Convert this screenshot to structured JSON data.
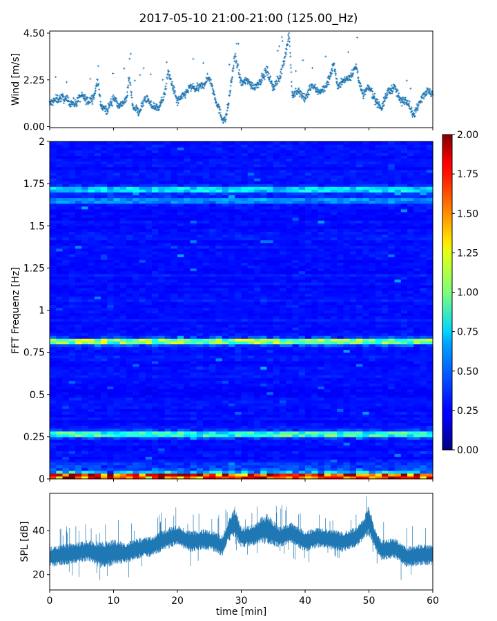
{
  "title": "2017-05-10 21:00-21:00 (125.00_Hz)",
  "chart_data": [
    {
      "type": "scatter",
      "panel": "wind",
      "ylabel": "Wind [m/s]",
      "xlim": [
        0,
        60
      ],
      "ylim": [
        -0.05,
        4.6
      ],
      "yticks": [
        0.0,
        2.25,
        4.5
      ],
      "ytick_labels": [
        "0.00",
        "2.25",
        "4.50"
      ],
      "series": [
        {
          "color": "#1f77b4",
          "marker": "+",
          "x": [
            0,
            1,
            2,
            3,
            4,
            5,
            6,
            7,
            7.5,
            8,
            9,
            10,
            11,
            12,
            12.5,
            13,
            14,
            15,
            16,
            17,
            18,
            18.5,
            19,
            20,
            21,
            22,
            23,
            24,
            25,
            26,
            27,
            27.5,
            28,
            29,
            30,
            31,
            32,
            33,
            34,
            35,
            36,
            37,
            37.5,
            38,
            39,
            40,
            41,
            42,
            43,
            44,
            44.5,
            45,
            46,
            47,
            48,
            49,
            50,
            51,
            52,
            53,
            54,
            55,
            56,
            57,
            58,
            59,
            60
          ],
          "y": [
            1.1,
            1.3,
            1.4,
            1.2,
            1.1,
            1.5,
            1.2,
            1.5,
            2.3,
            1.0,
            0.8,
            1.4,
            1.0,
            1.3,
            2.4,
            1.0,
            0.7,
            1.4,
            1.0,
            0.9,
            1.5,
            2.6,
            2.2,
            1.2,
            1.5,
            1.9,
            1.8,
            2.0,
            2.4,
            1.3,
            0.4,
            0.3,
            1.1,
            3.4,
            2.1,
            2.2,
            1.9,
            2.2,
            2.7,
            1.9,
            2.3,
            3.6,
            4.5,
            1.5,
            1.7,
            1.3,
            2.0,
            1.7,
            1.8,
            2.5,
            3.1,
            2.0,
            2.2,
            2.4,
            2.9,
            1.5,
            1.9,
            1.3,
            0.9,
            1.7,
            1.9,
            1.2,
            1.3,
            0.5,
            1.3,
            1.7,
            1.6
          ]
        }
      ]
    },
    {
      "type": "heatmap",
      "panel": "spectrogram",
      "ylabel": "FFT Frequenz [Hz]",
      "xlim": [
        0,
        60
      ],
      "ylim": [
        0,
        2
      ],
      "yticks": [
        0,
        0.25,
        0.5,
        0.75,
        1,
        1.25,
        1.5,
        1.75,
        2
      ],
      "ytick_labels": [
        "0",
        "0.25",
        "0.5",
        "0.75",
        "1",
        "1.25",
        "1.5",
        "1.75",
        "2"
      ],
      "colormap": "jet",
      "colorbar": {
        "range": [
          0.0,
          2.0
        ],
        "ticks": [
          "0.00",
          "0.25",
          "0.50",
          "0.75",
          "1.00",
          "1.25",
          "1.50",
          "1.75",
          "2.00"
        ]
      },
      "features": [
        {
          "frequency": 0.82,
          "level": 1.1
        },
        {
          "frequency": 0.27,
          "level": 0.9
        },
        {
          "frequency": 0.02,
          "level": 1.6
        },
        {
          "frequency": 1.72,
          "level": 0.7
        },
        {
          "frequency": 1.65,
          "level": 0.55
        }
      ],
      "background_level": 0.25
    },
    {
      "type": "line",
      "panel": "spl",
      "ylabel": "SPL [dB]",
      "xlabel": "time [min]",
      "xlim": [
        0,
        60
      ],
      "ylim": [
        13,
        57
      ],
      "xticks": [
        0,
        10,
        20,
        30,
        40,
        50,
        60
      ],
      "xtick_labels": [
        "0",
        "10",
        "20",
        "30",
        "40",
        "50",
        "60"
      ],
      "yticks": [
        20,
        40
      ],
      "ytick_labels": [
        "20",
        "40"
      ],
      "series": [
        {
          "color": "#1f77b4",
          "x": [
            0,
            2,
            4,
            6,
            8,
            10,
            12,
            14,
            16,
            18,
            20,
            22,
            24,
            26,
            27,
            28,
            29,
            30,
            32,
            33,
            34,
            36,
            38,
            40,
            42,
            44,
            46,
            48,
            49,
            50,
            51,
            52,
            54,
            56,
            58,
            60
          ],
          "y": [
            28,
            29,
            30,
            31,
            29,
            30,
            30,
            32,
            33,
            36,
            38,
            35,
            36,
            35,
            33,
            40,
            44,
            37,
            38,
            40,
            41,
            37,
            39,
            35,
            37,
            36,
            35,
            37,
            40,
            45,
            36,
            31,
            32,
            28,
            29,
            29
          ],
          "spread": [
            4,
            4,
            4,
            4,
            5,
            5,
            4,
            4,
            4,
            4,
            4,
            4,
            4,
            4,
            4,
            4,
            6,
            4,
            4,
            5,
            6,
            4,
            4,
            4,
            4,
            4,
            4,
            4,
            4,
            6,
            4,
            4,
            4,
            4,
            4,
            4
          ]
        }
      ]
    }
  ]
}
